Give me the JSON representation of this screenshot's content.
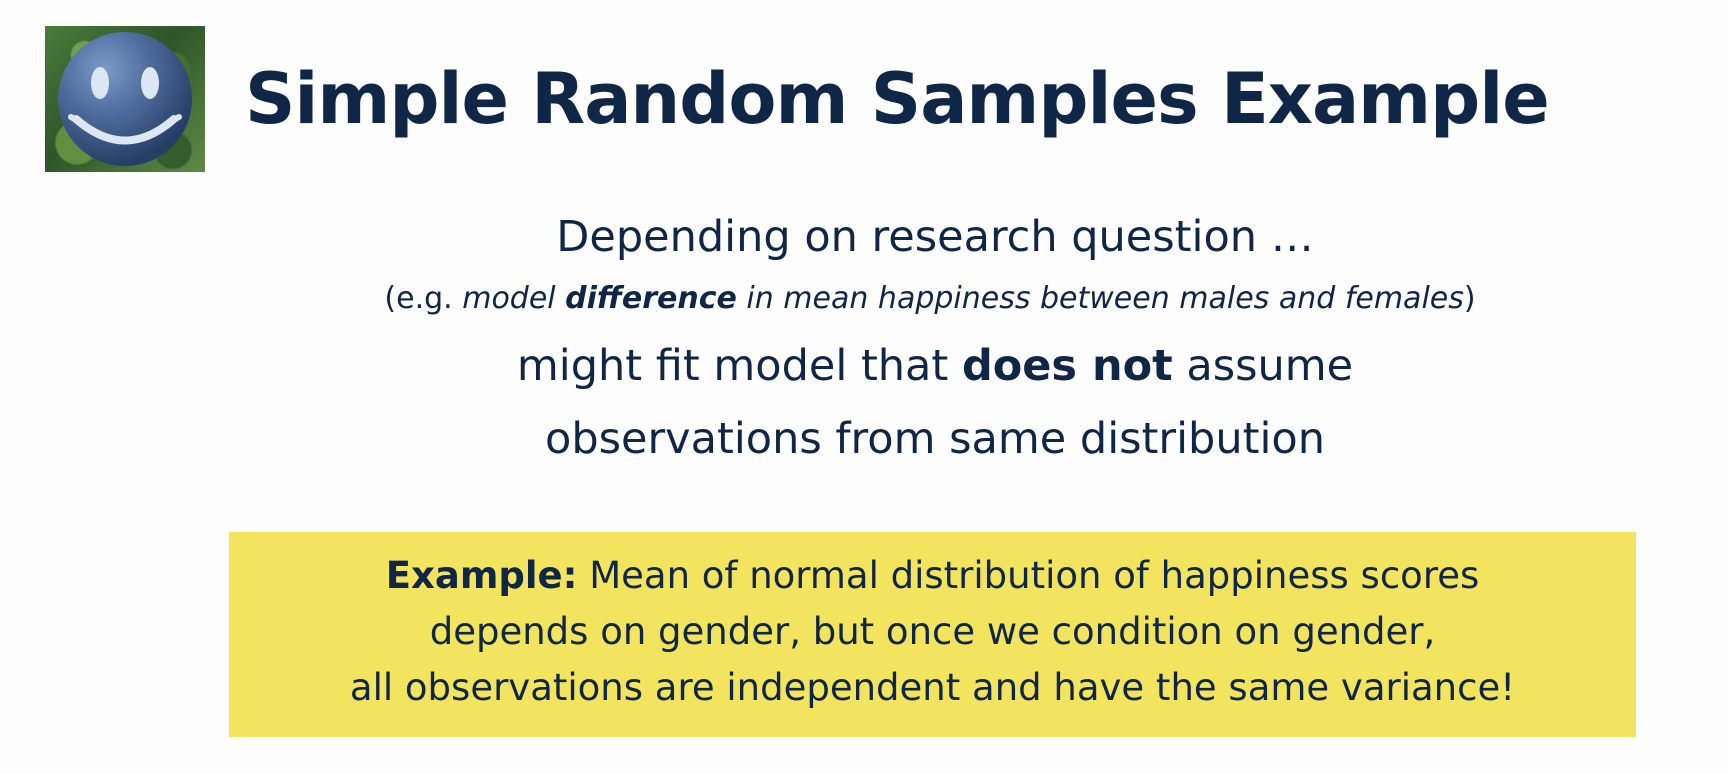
{
  "slide": {
    "title": "Simple Random Samples Example"
  },
  "body": {
    "line1": "Depending on research question …",
    "line2_prefix": "(e.g. ",
    "line2_model": "model ",
    "line2_difference": "difference",
    "line2_rest": " in mean happiness between males and females",
    "line2_suffix": ")",
    "line3_prefix": "might fit model that ",
    "line3_bold": "does not",
    "line3_suffix": " assume",
    "line4": "observations from same distribution"
  },
  "example": {
    "label": "Example:",
    "line1_rest": " Mean of normal distribution of happiness scores",
    "line2": "depends on gender, but once we condition on gender,",
    "line3": "all observations are independent and have the same variance!"
  },
  "colors": {
    "text": "#102646",
    "highlight": "#f3e460",
    "logo_face": "#4f6e9e",
    "logo_features": "#dce7f3"
  }
}
